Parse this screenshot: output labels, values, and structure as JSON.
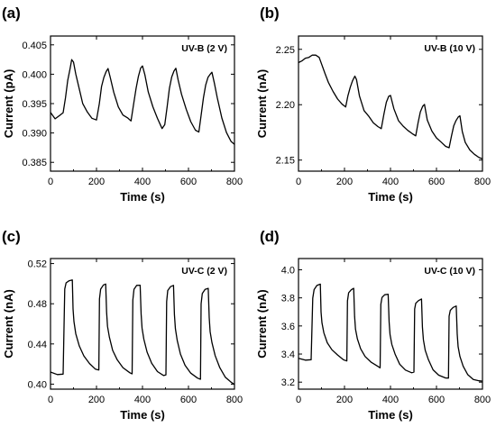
{
  "chart_data": [
    {
      "type": "line",
      "panel_label": "(a)",
      "annotation": "UV-B (2 V)",
      "xlabel": "Time (s)",
      "ylabel": "Current (pA)",
      "xlim": [
        0,
        800
      ],
      "ylim": [
        0.3835,
        0.4065
      ],
      "xticks": [
        0,
        200,
        400,
        600,
        800
      ],
      "yticks": [
        0.385,
        0.39,
        0.395,
        0.4,
        0.405
      ],
      "ytick_labels": [
        "0.385",
        "0.390",
        "0.395",
        "0.400",
        "0.405"
      ],
      "series": [
        {
          "x": [
            0,
            20,
            40,
            55,
            65,
            75,
            85,
            92,
            100,
            110,
            125,
            140,
            160,
            180,
            200,
            212,
            222,
            232,
            242,
            250,
            260,
            275,
            295,
            315,
            335,
            350,
            362,
            372,
            382,
            392,
            400,
            410,
            425,
            445,
            465,
            485,
            497,
            507,
            517,
            527,
            537,
            545,
            555,
            570,
            590,
            610,
            630,
            645,
            655,
            665,
            675,
            685,
            695,
            702,
            712,
            725,
            745,
            765,
            785,
            800
          ],
          "y": [
            0.3935,
            0.3925,
            0.393,
            0.3935,
            0.396,
            0.399,
            0.401,
            0.4025,
            0.402,
            0.4,
            0.3975,
            0.395,
            0.3935,
            0.3925,
            0.3922,
            0.395,
            0.398,
            0.3995,
            0.4005,
            0.401,
            0.3995,
            0.397,
            0.3945,
            0.393,
            0.3925,
            0.392,
            0.395,
            0.3975,
            0.3995,
            0.401,
            0.4015,
            0.4,
            0.397,
            0.3945,
            0.3925,
            0.3908,
            0.3915,
            0.3945,
            0.3975,
            0.3995,
            0.4005,
            0.401,
            0.399,
            0.3965,
            0.394,
            0.392,
            0.3905,
            0.3902,
            0.393,
            0.396,
            0.3982,
            0.3995,
            0.4,
            0.4003,
            0.3985,
            0.396,
            0.3925,
            0.39,
            0.3885,
            0.388
          ]
        }
      ]
    },
    {
      "type": "line",
      "panel_label": "(b)",
      "annotation": "UV-B (10 V)",
      "xlabel": "Time (s)",
      "ylabel": "Current (nA)",
      "xlim": [
        0,
        800
      ],
      "ylim": [
        2.14,
        2.262
      ],
      "xticks": [
        0,
        200,
        400,
        600,
        800
      ],
      "yticks": [
        2.15,
        2.2,
        2.25
      ],
      "ytick_labels": [
        "2.15",
        "2.20",
        "2.25"
      ],
      "series": [
        {
          "x": [
            0,
            15,
            30,
            45,
            60,
            75,
            90,
            100,
            115,
            130,
            150,
            170,
            190,
            205,
            215,
            225,
            235,
            245,
            252,
            265,
            285,
            305,
            325,
            345,
            360,
            372,
            382,
            392,
            400,
            415,
            435,
            455,
            475,
            495,
            510,
            520,
            530,
            540,
            548,
            560,
            580,
            600,
            620,
            640,
            655,
            665,
            675,
            685,
            695,
            702,
            712,
            725,
            745,
            765,
            785,
            800
          ],
          "y": [
            2.238,
            2.24,
            2.242,
            2.243,
            2.245,
            2.245,
            2.243,
            2.237,
            2.228,
            2.22,
            2.212,
            2.205,
            2.2,
            2.198,
            2.208,
            2.216,
            2.222,
            2.226,
            2.223,
            2.208,
            2.195,
            2.19,
            2.184,
            2.18,
            2.178,
            2.192,
            2.202,
            2.207,
            2.208,
            2.196,
            2.186,
            2.181,
            2.177,
            2.174,
            2.172,
            2.184,
            2.194,
            2.199,
            2.2,
            2.186,
            2.176,
            2.17,
            2.166,
            2.162,
            2.161,
            2.172,
            2.181,
            2.186,
            2.189,
            2.19,
            2.176,
            2.166,
            2.159,
            2.155,
            2.152,
            2.151
          ]
        }
      ]
    },
    {
      "type": "line",
      "panel_label": "(c)",
      "annotation": "UV-C (2 V)",
      "xlabel": "Time (s)",
      "ylabel": "Current (nA)",
      "xlim": [
        0,
        800
      ],
      "ylim": [
        0.395,
        0.525
      ],
      "xticks": [
        0,
        200,
        400,
        600,
        800
      ],
      "yticks": [
        0.4,
        0.44,
        0.48,
        0.52
      ],
      "ytick_labels": [
        "0.40",
        "0.44",
        "0.48",
        "0.52"
      ],
      "series": [
        {
          "x": [
            0,
            30,
            55,
            62,
            68,
            80,
            95,
            98,
            102,
            110,
            125,
            145,
            170,
            195,
            210,
            213,
            218,
            230,
            240,
            244,
            248,
            256,
            270,
            290,
            315,
            345,
            355,
            358,
            363,
            375,
            390,
            394,
            398,
            406,
            420,
            440,
            465,
            492,
            502,
            505,
            510,
            522,
            535,
            539,
            543,
            551,
            565,
            585,
            610,
            640,
            652,
            655,
            660,
            672,
            686,
            690,
            694,
            702,
            716,
            736,
            760,
            785,
            800
          ],
          "y": [
            0.412,
            0.41,
            0.41,
            0.495,
            0.501,
            0.503,
            0.504,
            0.475,
            0.462,
            0.45,
            0.438,
            0.428,
            0.42,
            0.415,
            0.414,
            0.485,
            0.495,
            0.499,
            0.5,
            0.472,
            0.458,
            0.447,
            0.434,
            0.424,
            0.416,
            0.411,
            0.41,
            0.483,
            0.494,
            0.498,
            0.499,
            0.47,
            0.456,
            0.445,
            0.432,
            0.421,
            0.413,
            0.409,
            0.409,
            0.482,
            0.493,
            0.497,
            0.498,
            0.469,
            0.455,
            0.444,
            0.43,
            0.419,
            0.411,
            0.406,
            0.405,
            0.48,
            0.49,
            0.494,
            0.495,
            0.466,
            0.452,
            0.441,
            0.428,
            0.416,
            0.407,
            0.402,
            0.4
          ]
        }
      ]
    },
    {
      "type": "line",
      "panel_label": "(d)",
      "annotation": "UV-C (10 V)",
      "xlabel": "Time (s)",
      "ylabel": "Current (nA)",
      "xlim": [
        0,
        800
      ],
      "ylim": [
        3.15,
        4.08
      ],
      "xticks": [
        0,
        200,
        400,
        600,
        800
      ],
      "yticks": [
        3.2,
        3.4,
        3.6,
        3.8,
        4.0
      ],
      "ytick_labels": [
        "3.2",
        "3.4",
        "3.6",
        "3.8",
        "4.0"
      ],
      "series": [
        {
          "x": [
            0,
            30,
            55,
            62,
            68,
            80,
            95,
            98,
            102,
            110,
            125,
            145,
            170,
            195,
            210,
            213,
            218,
            230,
            240,
            244,
            248,
            256,
            270,
            290,
            315,
            345,
            355,
            358,
            363,
            375,
            390,
            394,
            398,
            406,
            420,
            440,
            465,
            492,
            502,
            505,
            510,
            522,
            535,
            539,
            543,
            551,
            565,
            585,
            610,
            640,
            652,
            655,
            660,
            672,
            686,
            690,
            694,
            702,
            716,
            736,
            760,
            785,
            800
          ],
          "y": [
            3.37,
            3.36,
            3.36,
            3.8,
            3.86,
            3.89,
            3.9,
            3.7,
            3.62,
            3.55,
            3.48,
            3.43,
            3.39,
            3.36,
            3.35,
            3.78,
            3.84,
            3.86,
            3.87,
            3.67,
            3.58,
            3.51,
            3.44,
            3.38,
            3.34,
            3.31,
            3.3,
            3.75,
            3.8,
            3.82,
            3.83,
            3.63,
            3.54,
            3.47,
            3.4,
            3.33,
            3.29,
            3.27,
            3.27,
            3.72,
            3.76,
            3.78,
            3.79,
            3.59,
            3.5,
            3.43,
            3.36,
            3.29,
            3.25,
            3.23,
            3.23,
            3.67,
            3.71,
            3.73,
            3.74,
            3.54,
            3.45,
            3.38,
            3.31,
            3.25,
            3.22,
            3.21,
            3.21
          ]
        }
      ]
    }
  ]
}
